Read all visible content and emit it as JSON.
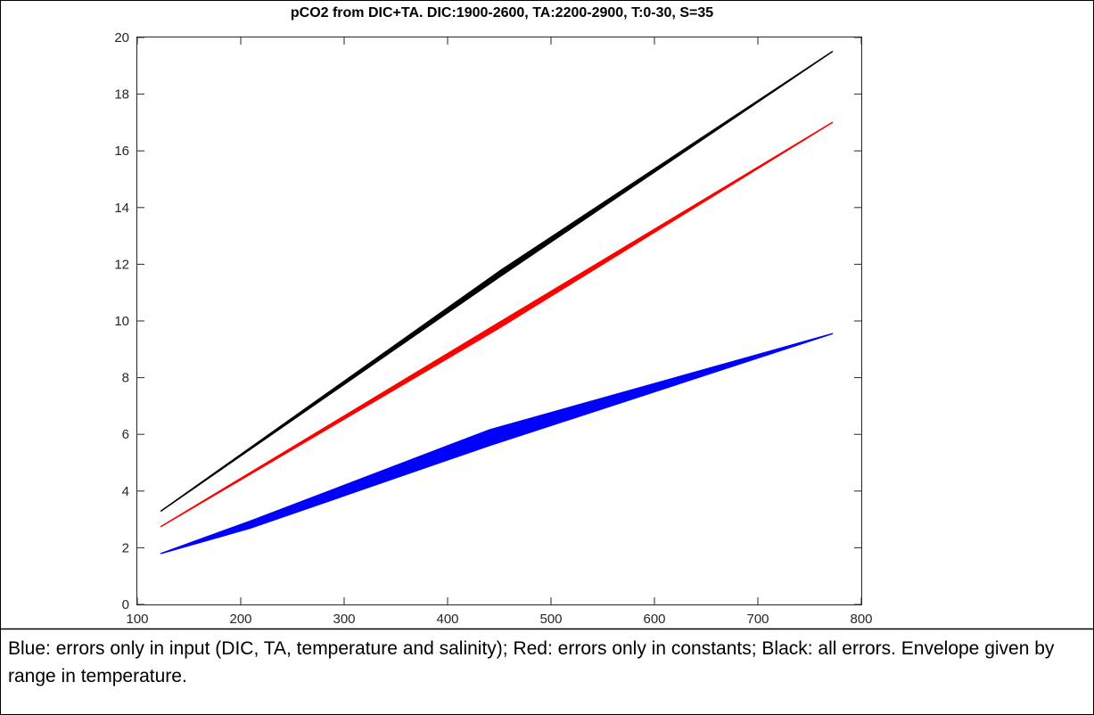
{
  "chart_data": {
    "type": "area",
    "title": "pCO2 from DIC+TA. DIC:1900-2600, TA:2200-2900, T:0-30, S=35",
    "xlabel": "",
    "ylabel": "",
    "xlim": [
      100,
      800
    ],
    "ylim": [
      0,
      20
    ],
    "xticks": [
      "100",
      "200",
      "300",
      "400",
      "500",
      "600",
      "700",
      "800"
    ],
    "yticks": [
      "0",
      "2",
      "4",
      "6",
      "8",
      "10",
      "12",
      "14",
      "16",
      "18",
      "20"
    ],
    "grid": false,
    "legend": "none",
    "series": [
      {
        "color": "#000000",
        "x": [
          123,
          450,
          772
        ],
        "lower": [
          3.3,
          11.55,
          19.5
        ],
        "upper": [
          3.3,
          11.75,
          19.5
        ]
      },
      {
        "color": "#ff0000",
        "x": [
          123,
          450,
          772
        ],
        "lower": [
          2.75,
          9.75,
          17.0
        ],
        "upper": [
          2.75,
          9.95,
          17.0
        ]
      },
      {
        "color": "#0000ff",
        "x": [
          123,
          210,
          440,
          772
        ],
        "lower": [
          1.8,
          2.7,
          5.6,
          9.55
        ],
        "upper": [
          1.8,
          2.95,
          6.15,
          9.55
        ]
      }
    ]
  },
  "caption": "Blue: errors only in input (DIC, TA, temperature and salinity); Red: errors only in constants; Black: all errors. Envelope given by range in temperature."
}
